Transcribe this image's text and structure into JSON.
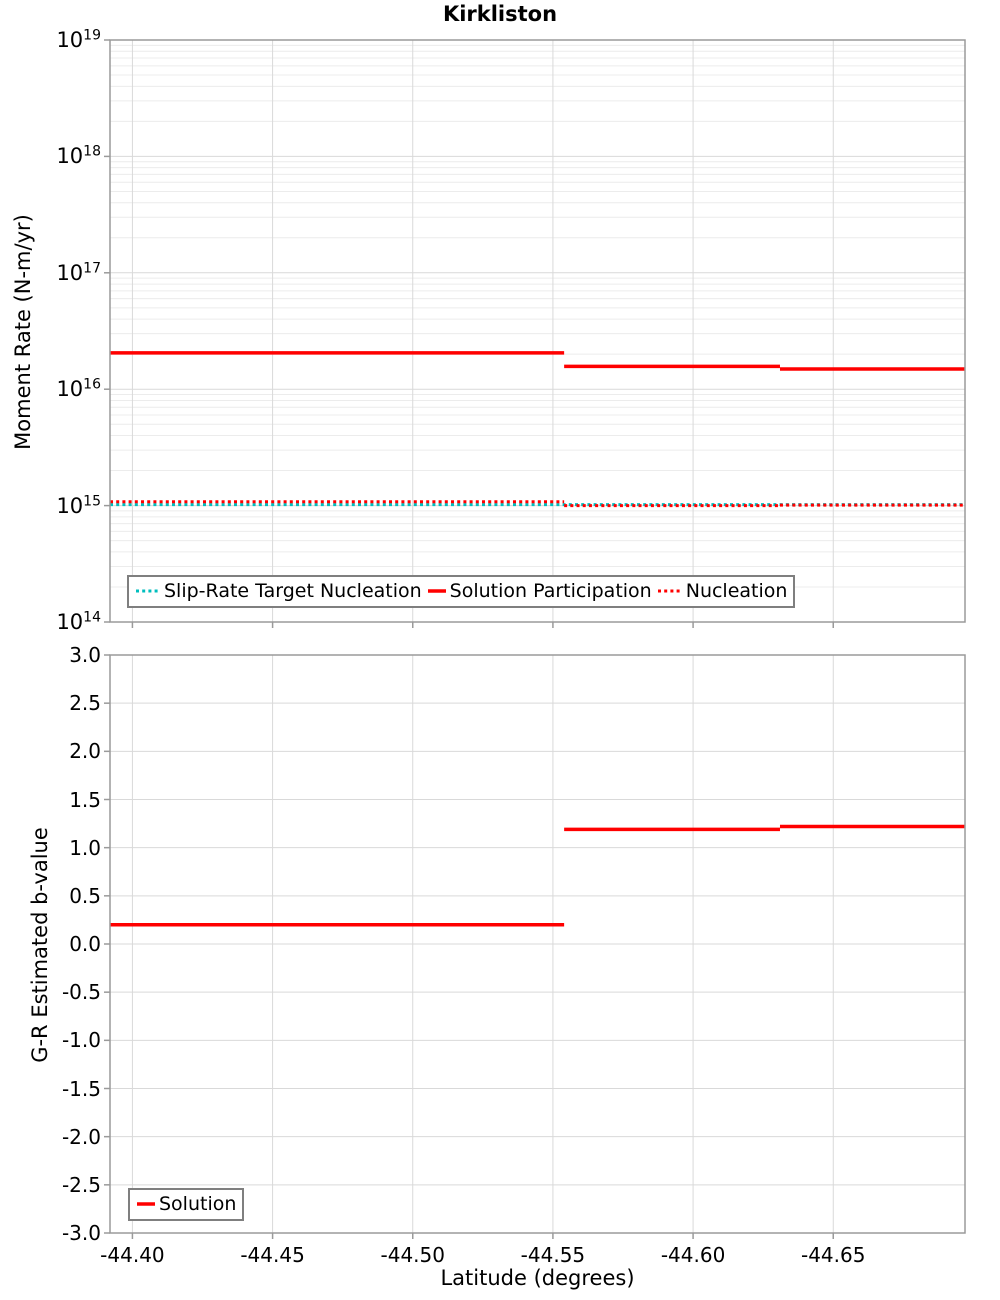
{
  "figure_title": "Kirkliston",
  "colors": {
    "solution_red": "#ff0000",
    "target_cyan": "#00bebe"
  },
  "chart_data": [
    {
      "id": "moment",
      "type": "line",
      "subtype": "step-segments",
      "title": "Kirkliston",
      "xlabel": "",
      "ylabel": "Moment Rate (N-m/yr)",
      "yscale": "log",
      "ylim": [
        100000000000000.0,
        1e+19
      ],
      "xlim": [
        -44.392,
        -44.697
      ],
      "x_axis_reversed": true,
      "grid": true,
      "show_x_tick_labels": false,
      "x_ticks": [
        {
          "value": -44.4,
          "label": "-44.40"
        },
        {
          "value": -44.45,
          "label": "-44.45"
        },
        {
          "value": -44.5,
          "label": "-44.50"
        },
        {
          "value": -44.55,
          "label": "-44.55"
        },
        {
          "value": -44.6,
          "label": "-44.60"
        },
        {
          "value": -44.65,
          "label": "-44.65"
        }
      ],
      "y_ticks": [
        {
          "value": 1e+19,
          "base": "10",
          "exp": "19"
        },
        {
          "value": 1e+18,
          "base": "10",
          "exp": "18"
        },
        {
          "value": 1e+17,
          "base": "10",
          "exp": "17"
        },
        {
          "value": 1e+16,
          "base": "10",
          "exp": "16"
        },
        {
          "value": 1000000000000000.0,
          "base": "10",
          "exp": "15"
        },
        {
          "value": 100000000000000.0,
          "base": "10",
          "exp": "14"
        }
      ],
      "series": [
        {
          "name": "Slip-Rate Target Nucleation",
          "color": "#00bebe",
          "style": "dotted",
          "width": 3,
          "x_edges": [
            -44.392,
            -44.697
          ],
          "values": [
            1020000000000000.0
          ]
        },
        {
          "name": "Solution Participation",
          "color": "#ff0000",
          "style": "solid",
          "width": 3.5,
          "x_edges": [
            -44.392,
            -44.554,
            -44.631,
            -44.697
          ],
          "values": [
            2.05e+16,
            1.57e+16,
            1.49e+16
          ]
        },
        {
          "name": "Nucleation",
          "color": "#ff0000",
          "style": "dotted",
          "width": 3,
          "x_edges": [
            -44.392,
            -44.554,
            -44.631,
            -44.697
          ],
          "values": [
            1080000000000000.0,
            1000000000000000.0,
            1010000000000000.0
          ]
        }
      ],
      "legend": {
        "position": "bottom-left"
      }
    },
    {
      "id": "bvalue",
      "type": "line",
      "subtype": "step-segments",
      "title": "",
      "xlabel": "Latitude (degrees)",
      "ylabel": "G-R Estimated b-value",
      "yscale": "linear",
      "ylim": [
        -3.0,
        3.0
      ],
      "xlim": [
        -44.392,
        -44.697
      ],
      "x_axis_reversed": true,
      "grid": true,
      "show_x_tick_labels": true,
      "x_ticks": [
        {
          "value": -44.4,
          "label": "-44.40"
        },
        {
          "value": -44.45,
          "label": "-44.45"
        },
        {
          "value": -44.5,
          "label": "-44.50"
        },
        {
          "value": -44.55,
          "label": "-44.55"
        },
        {
          "value": -44.6,
          "label": "-44.60"
        },
        {
          "value": -44.65,
          "label": "-44.65"
        }
      ],
      "y_ticks": [
        {
          "value": 3.0,
          "label": "3.0"
        },
        {
          "value": 2.5,
          "label": "2.5"
        },
        {
          "value": 2.0,
          "label": "2.0"
        },
        {
          "value": 1.5,
          "label": "1.5"
        },
        {
          "value": 1.0,
          "label": "1.0"
        },
        {
          "value": 0.5,
          "label": "0.5"
        },
        {
          "value": 0.0,
          "label": "0.0"
        },
        {
          "value": -0.5,
          "label": "-0.5"
        },
        {
          "value": -1.0,
          "label": "-1.0"
        },
        {
          "value": -1.5,
          "label": "-1.5"
        },
        {
          "value": -2.0,
          "label": "-2.0"
        },
        {
          "value": -2.5,
          "label": "-2.5"
        },
        {
          "value": -3.0,
          "label": "-3.0"
        }
      ],
      "series": [
        {
          "name": "Solution",
          "color": "#ff0000",
          "style": "solid",
          "width": 3.5,
          "x_edges": [
            -44.392,
            -44.554,
            -44.631,
            -44.697
          ],
          "values": [
            0.2,
            1.19,
            1.22
          ]
        }
      ],
      "legend": {
        "position": "bottom-left"
      }
    }
  ]
}
